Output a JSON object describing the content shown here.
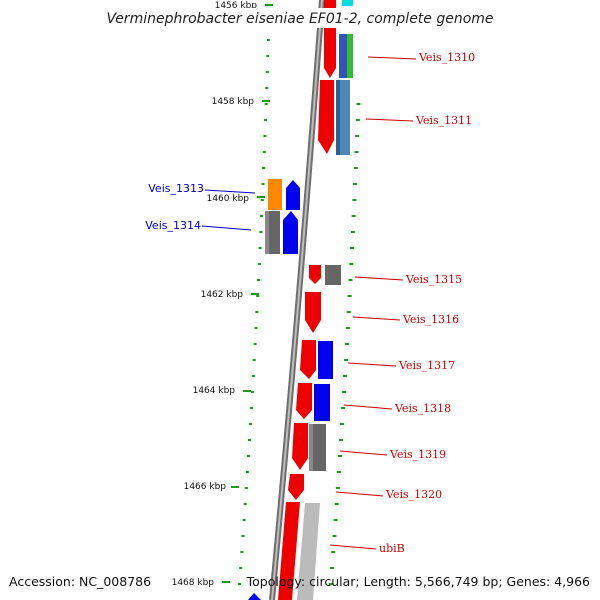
{
  "title": "Verminephrobacter eiseniae EF01-2, complete genome",
  "footer": {
    "accession": "Accession: NC_008786",
    "summary": "Topology: circular; Length: 5,566,749 bp; Genes: 4,966"
  },
  "ticks": [
    {
      "label": "1456 kbp",
      "value": 1456
    },
    {
      "label": "1458 kbp",
      "value": 1458
    },
    {
      "label": "1460 kbp",
      "value": 1460
    },
    {
      "label": "1462 kbp",
      "value": 1462
    },
    {
      "label": "1464 kbp",
      "value": 1464
    },
    {
      "label": "1466 kbp",
      "value": 1466
    },
    {
      "label": "1468 kbp",
      "value": 1468
    }
  ],
  "genes": [
    {
      "label": "Veis_1310",
      "strand": "forward"
    },
    {
      "label": "Veis_1311",
      "strand": "forward"
    },
    {
      "label": "Veis_1313",
      "strand": "reverse"
    },
    {
      "label": "Veis_1314",
      "strand": "reverse"
    },
    {
      "label": "Veis_1315",
      "strand": "forward"
    },
    {
      "label": "Veis_1316",
      "strand": "forward"
    },
    {
      "label": "Veis_1317",
      "strand": "forward"
    },
    {
      "label": "Veis_1318",
      "strand": "forward"
    },
    {
      "label": "Veis_1319",
      "strand": "forward"
    },
    {
      "label": "Veis_1320",
      "strand": "forward"
    },
    {
      "label": "ubiB",
      "strand": "forward"
    }
  ],
  "colors": {
    "backbone": "#888888",
    "forward_label": "#cc0000",
    "reverse_label": "#0000cc",
    "cds": "#ee0000",
    "category_blue": "#0000ee",
    "category_grey": "#666666",
    "category_steel": "#4f86b8",
    "category_green": "#33bb33",
    "category_cyan": "#00dddd",
    "category_orange": "#ff8800",
    "category_light": "#bbbbbb",
    "tick_green": "#229922"
  }
}
